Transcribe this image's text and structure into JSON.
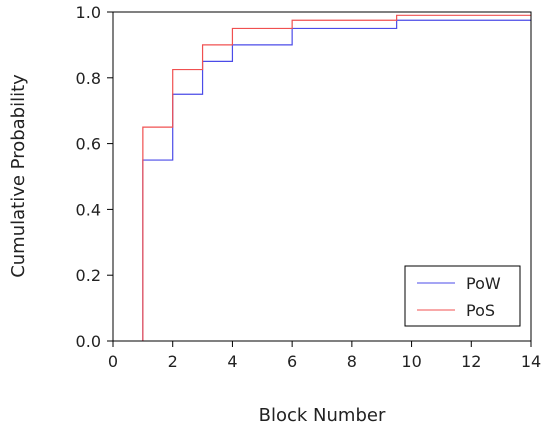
{
  "chart_data": {
    "type": "line",
    "step": "post",
    "xlabel": "Block Number",
    "ylabel": "Cumulative Probability",
    "xlim": [
      0,
      14
    ],
    "ylim": [
      0,
      1.0
    ],
    "xticks": [
      "0",
      "2",
      "4",
      "6",
      "8",
      "10",
      "12",
      "14"
    ],
    "yticks": [
      "0.0",
      "0.2",
      "0.4",
      "0.6",
      "0.8",
      "1.0"
    ],
    "grid": false,
    "legend_position": "bottom-right",
    "series": [
      {
        "name": "PoW",
        "color": "#4b4be8",
        "x": [
          1,
          1,
          2,
          3,
          4,
          6,
          9.5,
          14
        ],
        "y": [
          0.0,
          0.55,
          0.75,
          0.85,
          0.9,
          0.95,
          0.975,
          0.975
        ]
      },
      {
        "name": "PoS",
        "color": "#f05050",
        "x": [
          1,
          1,
          2,
          3,
          4,
          6,
          9.5,
          14
        ],
        "y": [
          0.0,
          0.65,
          0.825,
          0.9,
          0.95,
          0.975,
          0.99,
          0.99
        ]
      }
    ]
  }
}
